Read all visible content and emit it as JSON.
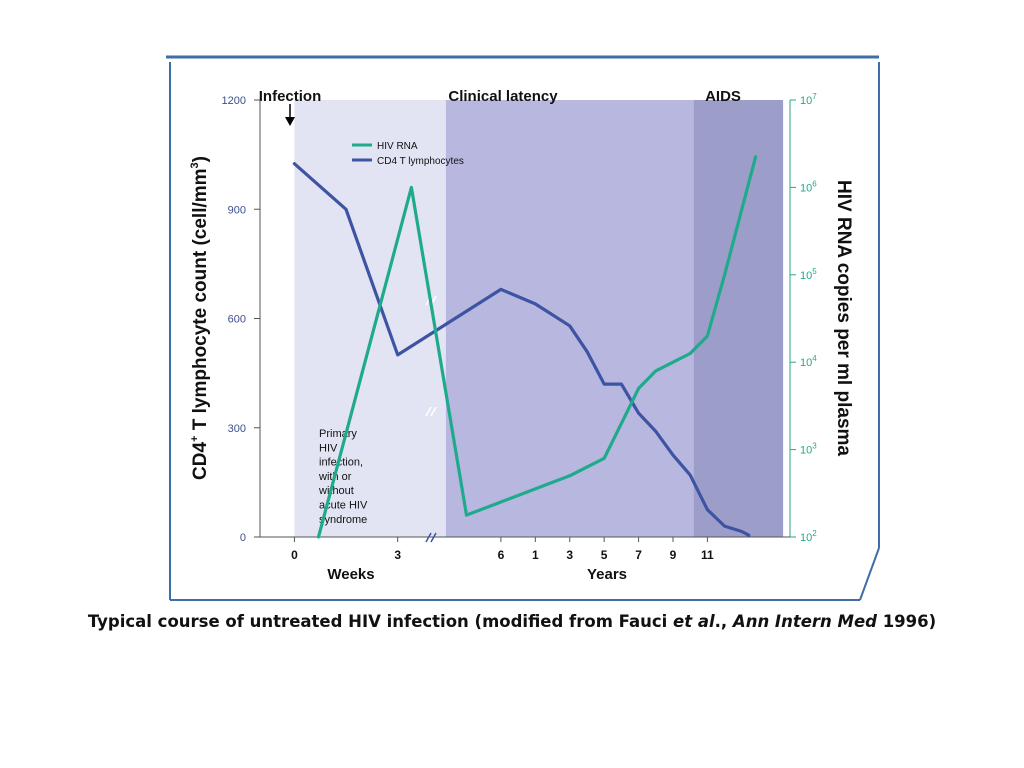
{
  "chart_data": {
    "type": "line",
    "phases": [
      {
        "label": "Infection",
        "x_from": 0,
        "x_to": 4.4,
        "color": "#e2e4f3"
      },
      {
        "label": "Clinical latency",
        "x_from": 4.4,
        "x_to": 11.6,
        "color": "#b7b7df"
      },
      {
        "label": "AIDS",
        "x_from": 11.6,
        "x_to": 14.2,
        "color": "#9d9dca"
      }
    ],
    "annotation": [
      "Primary",
      "HIV",
      "infection,",
      "with or",
      "without",
      "acute HIV",
      "syndrome"
    ],
    "legend": [
      {
        "name": "HIV RNA",
        "color": "#1faa8c"
      },
      {
        "name": "CD4 T lymphocytes",
        "color": "#3e54a3"
      }
    ],
    "ylabel_left": {
      "main": "CD4",
      "sup": "+",
      "rest": " T lymphocyte count (cell/mm",
      "sup2": "3",
      "end": ")"
    },
    "ylabel_right": "HIV RNA copies per ml plasma",
    "y_left_ticks": [
      "0",
      "300",
      "600",
      "900",
      "1200"
    ],
    "y_left_range": [
      0,
      1200
    ],
    "y_right_ticks": [
      {
        "base": "10",
        "exp": "2"
      },
      {
        "base": "10",
        "exp": "3"
      },
      {
        "base": "10",
        "exp": "4"
      },
      {
        "base": "10",
        "exp": "5"
      },
      {
        "base": "10",
        "exp": "6"
      },
      {
        "base": "10",
        "exp": "7"
      }
    ],
    "y_right_range_log10": [
      2,
      7
    ],
    "x_tick_labels": [
      "0",
      "3",
      "6",
      "1",
      "3",
      "5",
      "7",
      "9",
      "11"
    ],
    "x_tick_positions": [
      0,
      3,
      6,
      7,
      8,
      9,
      10,
      11,
      12
    ],
    "x_group_labels": [
      "Weeks",
      "Years"
    ],
    "x_range": [
      -1,
      14.4
    ],
    "series": [
      {
        "name": "CD4 T lymphocytes",
        "axis": "left",
        "points": [
          [
            0,
            1025
          ],
          [
            1.5,
            900
          ],
          [
            3,
            500
          ],
          [
            6,
            680
          ],
          [
            7,
            640
          ],
          [
            8,
            580
          ],
          [
            8.5,
            510
          ],
          [
            9,
            420
          ],
          [
            9.5,
            420
          ],
          [
            10,
            340
          ],
          [
            10.5,
            290
          ],
          [
            11,
            225
          ],
          [
            11.5,
            170
          ],
          [
            12,
            75
          ],
          [
            12.5,
            30
          ],
          [
            13,
            15
          ],
          [
            13.2,
            5
          ]
        ],
        "color": "#3e54a3"
      },
      {
        "name": "HIV RNA",
        "axis": "right",
        "points": [
          [
            0.7,
            2.0
          ],
          [
            3.4,
            6.0
          ],
          [
            5,
            2.25
          ],
          [
            6,
            2.4
          ],
          [
            7,
            2.55
          ],
          [
            8,
            2.7
          ],
          [
            9,
            2.9
          ],
          [
            9.5,
            3.3
          ],
          [
            10,
            3.7
          ],
          [
            10.5,
            3.9
          ],
          [
            11,
            4.0
          ],
          [
            11.5,
            4.1
          ],
          [
            12,
            4.3
          ],
          [
            12.5,
            5.0
          ],
          [
            13.4,
            6.35
          ]
        ],
        "color": "#1faa8c"
      }
    ]
  },
  "caption": {
    "part1": "Typical course of untreated HIV infection (modified from Fauci ",
    "part2": "et al",
    "part3": "., ",
    "part4": "Ann Intern Med",
    "part5": " 1996)"
  }
}
